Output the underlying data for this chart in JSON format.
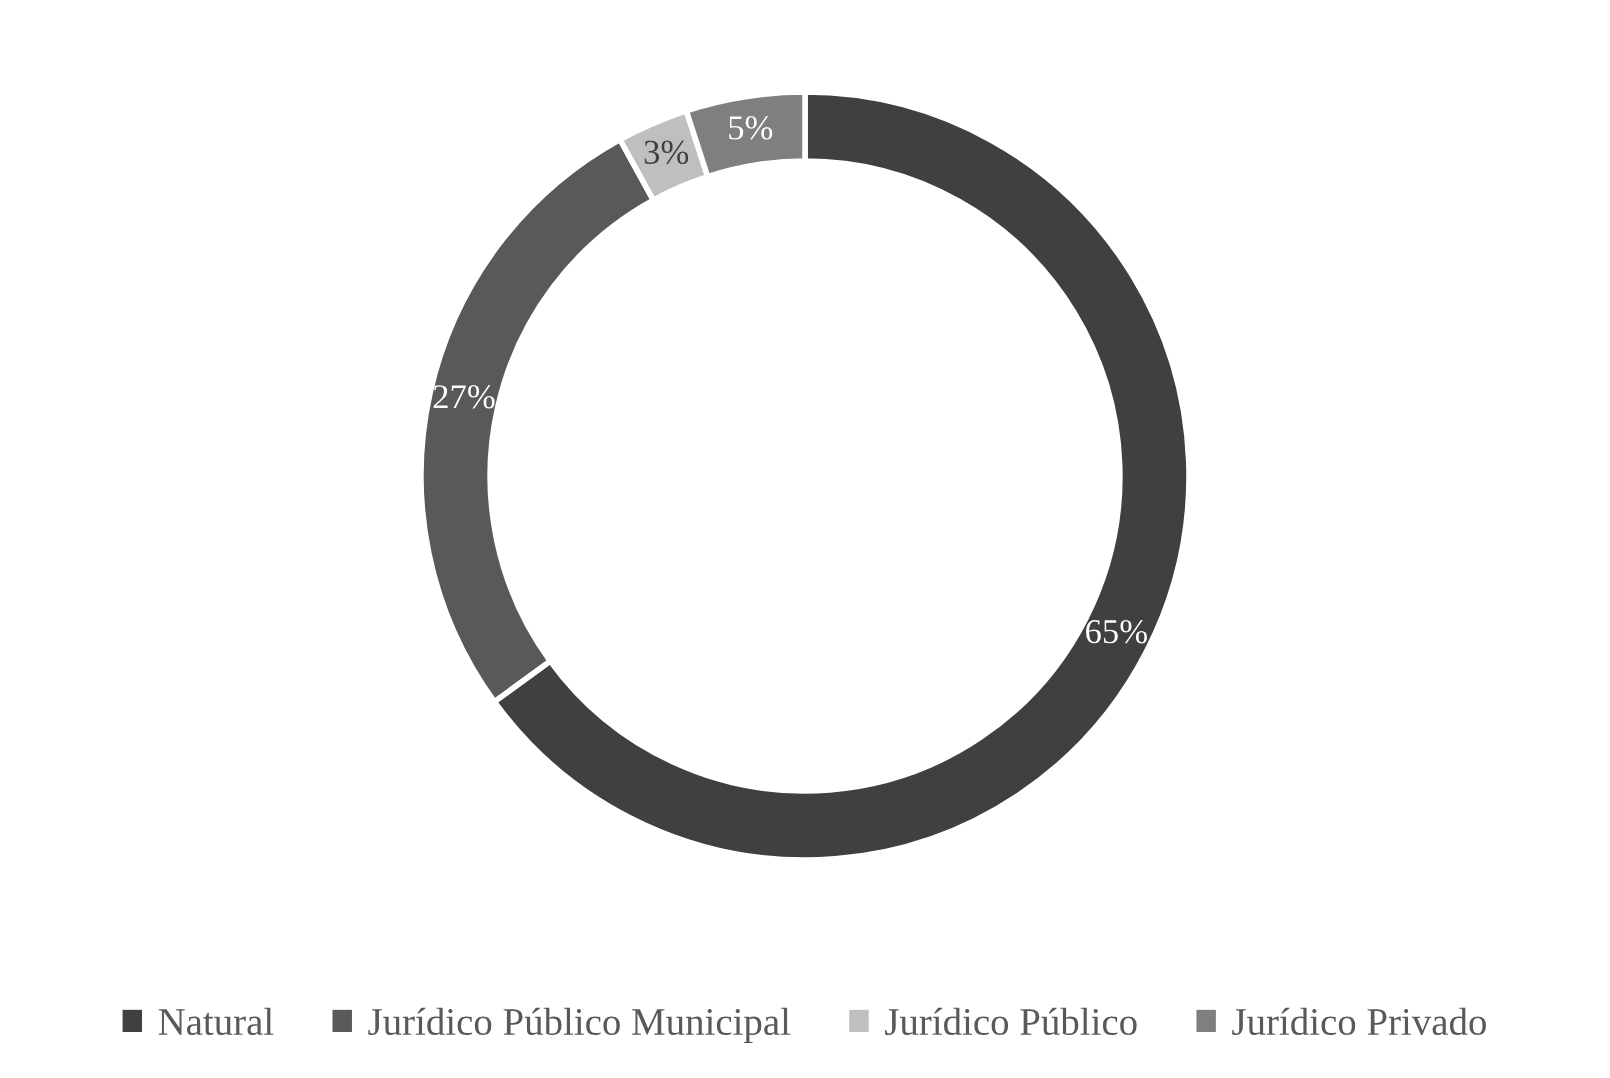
{
  "chart_data": {
    "type": "donut",
    "categories": [
      "Natural",
      "Jurídico Público Municipal",
      "Jurídico Público",
      "Jurídico Privado"
    ],
    "values": [
      65,
      27,
      3,
      5
    ],
    "colors": [
      "#404040",
      "#595959",
      "#bfbfbf",
      "#7f7f7f"
    ],
    "value_labels": [
      "65%",
      "27%",
      "3%",
      "5%"
    ],
    "legend": "bottom"
  }
}
